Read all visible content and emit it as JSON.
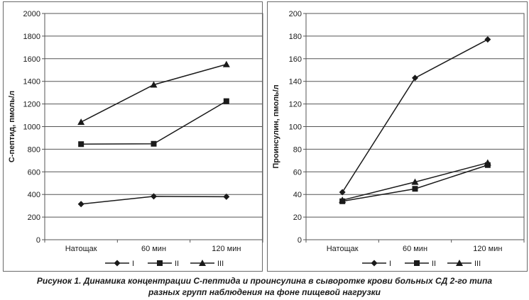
{
  "caption": {
    "line1": "Рисунок 1. Динамика концентрации С-пептида и проинсулина в сыворотке крови больных СД 2-го типа",
    "line2": "разных групп наблюдения на фоне пищевой нагрузки"
  },
  "chart_data": [
    {
      "type": "line",
      "title": "",
      "xlabel": "",
      "ylabel": "С-пептид, пмоль/л",
      "categories": [
        "Натощак",
        "60 мин",
        "120 мин"
      ],
      "ylim": [
        0,
        2000
      ],
      "yticks": [
        0,
        200,
        400,
        600,
        800,
        1000,
        1200,
        1400,
        1600,
        1800,
        2000
      ],
      "grid": true,
      "legend": "bottom",
      "series": [
        {
          "name": "I",
          "marker": "diamond",
          "values": [
            315,
            383,
            380
          ]
        },
        {
          "name": "II",
          "marker": "square",
          "values": [
            845,
            848,
            1225
          ]
        },
        {
          "name": "III",
          "marker": "triangle",
          "values": [
            1040,
            1370,
            1550
          ]
        }
      ]
    },
    {
      "type": "line",
      "title": "",
      "xlabel": "",
      "ylabel": "Проинсулин, пмоль/л",
      "categories": [
        "Натощак",
        "60 мин",
        "120 мин"
      ],
      "ylim": [
        0,
        200
      ],
      "yticks": [
        0,
        20,
        40,
        60,
        80,
        100,
        120,
        140,
        160,
        180,
        200
      ],
      "grid": true,
      "legend": "bottom",
      "series": [
        {
          "name": "I",
          "marker": "diamond",
          "values": [
            42,
            143,
            177
          ]
        },
        {
          "name": "II",
          "marker": "square",
          "values": [
            34,
            45,
            66
          ]
        },
        {
          "name": "III",
          "marker": "triangle",
          "values": [
            35,
            51,
            68
          ]
        }
      ]
    }
  ]
}
